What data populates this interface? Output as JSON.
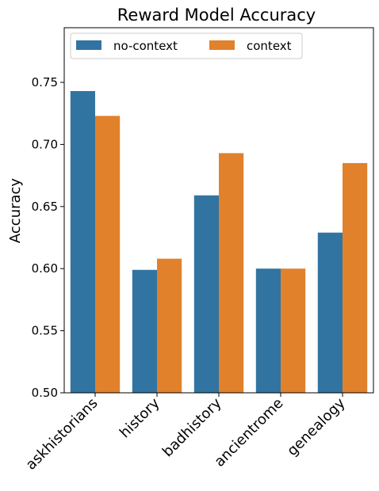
{
  "chart_data": {
    "type": "bar",
    "title": "Reward Model Accuracy",
    "xlabel": "",
    "ylabel": "Accuracy",
    "categories": [
      "askhistorians",
      "history",
      "badhistory",
      "ancientrome",
      "genealogy"
    ],
    "series": [
      {
        "name": "no-context",
        "color": "#3274a1",
        "values": [
          0.743,
          0.599,
          0.659,
          0.6,
          0.629
        ]
      },
      {
        "name": "context",
        "color": "#e1812c",
        "values": [
          0.723,
          0.608,
          0.693,
          0.6,
          0.685
        ]
      }
    ],
    "ylim": [
      0.5,
      0.794
    ],
    "yticks": [
      "0.50",
      "0.55",
      "0.60",
      "0.65",
      "0.70",
      "0.75"
    ],
    "grid": false,
    "legend_position": "top-left",
    "legend_columns": 2
  }
}
